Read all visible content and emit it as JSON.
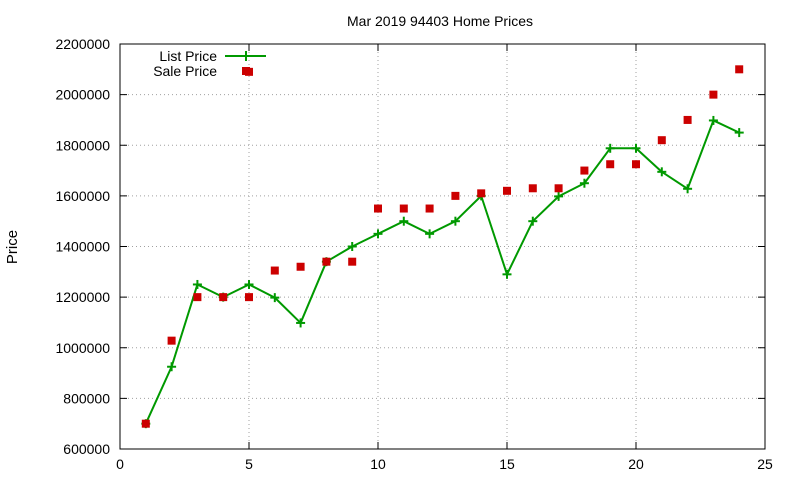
{
  "chart_data": {
    "type": "line",
    "title": "Mar 2019 94403 Home Prices",
    "xlabel": "",
    "ylabel": "Price",
    "xlim": [
      0,
      25
    ],
    "ylim": [
      600000,
      2200000
    ],
    "x_ticks": [
      0,
      5,
      10,
      15,
      20,
      25
    ],
    "y_ticks": [
      600000,
      800000,
      1000000,
      1200000,
      1400000,
      1600000,
      1800000,
      2000000,
      2200000
    ],
    "x_tick_labels": [
      "0",
      "5",
      "10",
      "15",
      "20",
      "25"
    ],
    "y_tick_labels": [
      "600000",
      "800000",
      "1000000",
      "1200000",
      "1400000",
      "1600000",
      "1800000",
      "2000000",
      "2200000"
    ],
    "grid": true,
    "legend_position": "top-left",
    "series": [
      {
        "name": "List Price",
        "style": "line+cross",
        "color": "#009900",
        "x": [
          1,
          2,
          3,
          4,
          5,
          6,
          7,
          8,
          9,
          10,
          11,
          12,
          13,
          14,
          15,
          16,
          17,
          18,
          19,
          20,
          21,
          22,
          23,
          24
        ],
        "y": [
          700000,
          925000,
          1250000,
          1200000,
          1250000,
          1198000,
          1098000,
          1340000,
          1400000,
          1450000,
          1500000,
          1450000,
          1500000,
          1600000,
          1290000,
          1500000,
          1598000,
          1650000,
          1788000,
          1788000,
          1695000,
          1628000,
          1898000,
          1850000
        ]
      },
      {
        "name": "Sale Price",
        "style": "square",
        "color": "#cc0000",
        "x": [
          1,
          2,
          3,
          4,
          5,
          6,
          7,
          8,
          9,
          10,
          11,
          12,
          13,
          14,
          15,
          16,
          17,
          18,
          19,
          20,
          21,
          22,
          23,
          24
        ],
        "y": [
          700000,
          1028000,
          1200000,
          1200000,
          1200000,
          1305000,
          1320000,
          1340000,
          1340000,
          1550000,
          1550000,
          1550000,
          1600000,
          1610000,
          1620000,
          1630000,
          1630000,
          1700000,
          1725000,
          1725000,
          1820000,
          1900000,
          2000000,
          2100000
        ]
      },
      {
        "name": "",
        "style": "square",
        "color": "#cc0000",
        "x": [
          5
        ],
        "y": [
          2090000
        ]
      }
    ]
  }
}
